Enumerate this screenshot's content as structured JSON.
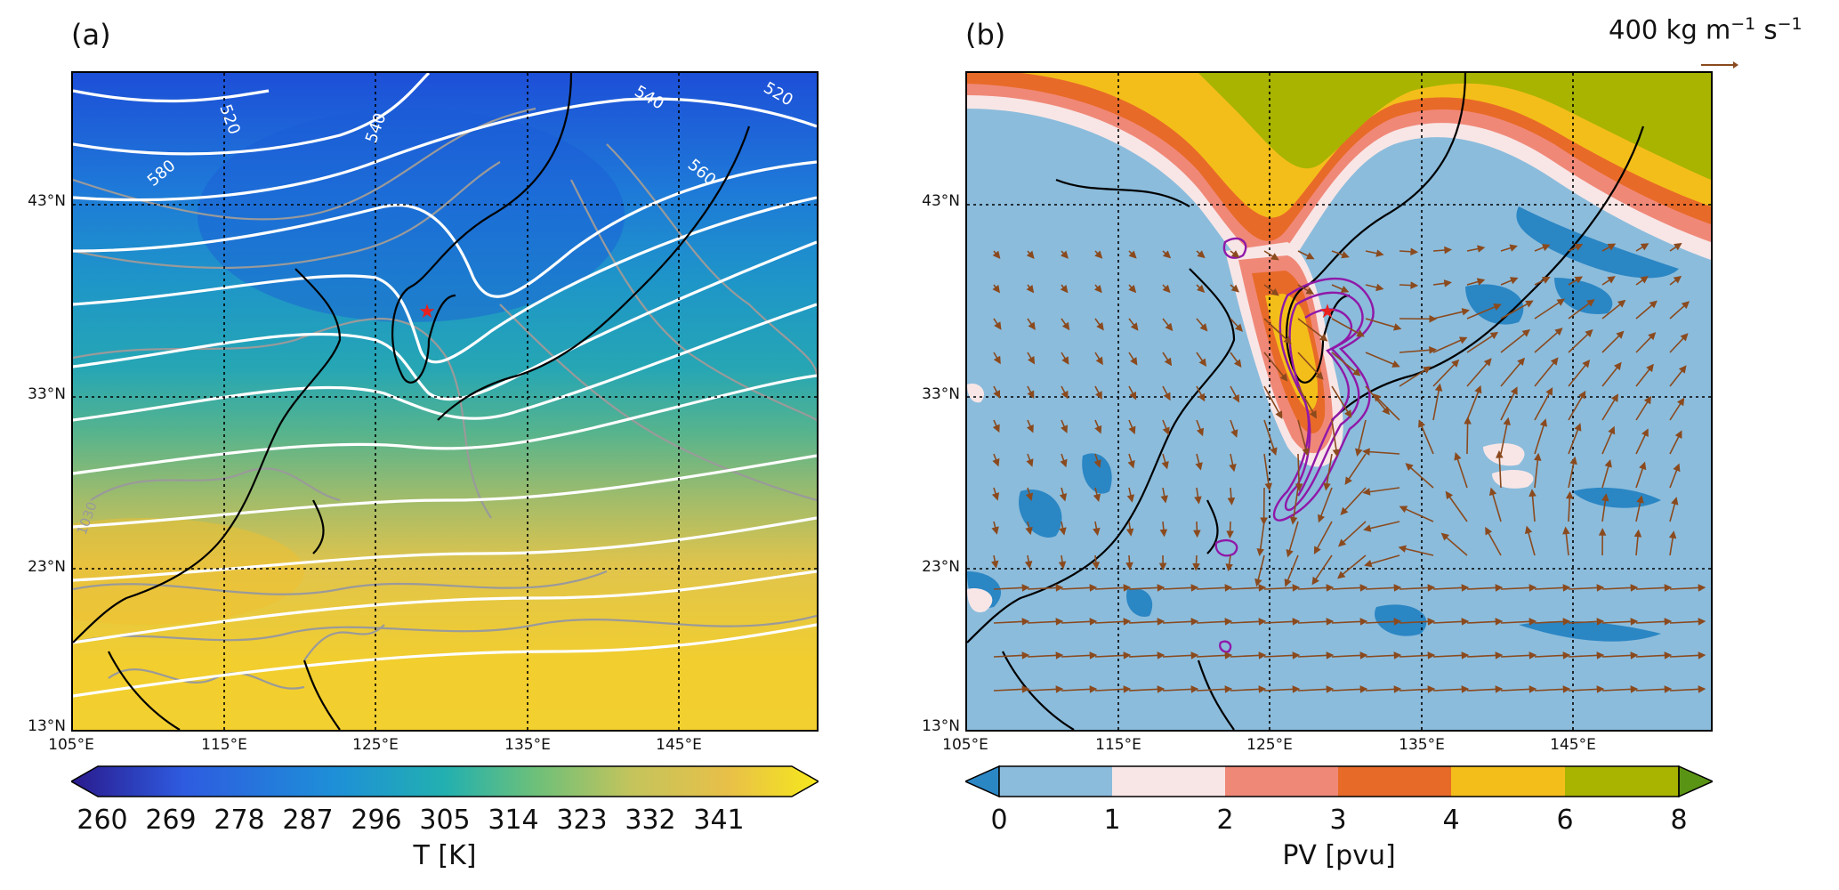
{
  "panel_a": {
    "label": "(a)",
    "lat_ticks": [
      "43°N",
      "33°N",
      "23°N",
      "13°N"
    ],
    "lon_ticks": [
      "105°E",
      "115°E",
      "125°E",
      "135°E",
      "145°E"
    ],
    "contour_labels": [
      "520",
      "580",
      "540",
      "540",
      "560",
      "520",
      "1030"
    ],
    "colorbar": {
      "ticks": [
        "260",
        "269",
        "278",
        "287",
        "296",
        "305",
        "314",
        "323",
        "332",
        "341"
      ],
      "label": "T [K]",
      "colormap": [
        "#2a1a8c",
        "#2e5be0",
        "#1e8fd8",
        "#22b0b0",
        "#6cc07a",
        "#c4c45c",
        "#e8c048",
        "#f6e81c"
      ]
    },
    "colors": {
      "geopotential_contour": "#ffffff",
      "slp_contour": "#9a9a9a",
      "marker": "#e8201e"
    }
  },
  "panel_b": {
    "label": "(b)",
    "lat_ticks": [
      "43°N",
      "33°N",
      "23°N",
      "13°N"
    ],
    "lon_ticks": [
      "105°E",
      "115°E",
      "125°E",
      "135°E",
      "145°E"
    ],
    "flux_reference": {
      "value": "400",
      "unit_base": "kg m",
      "unit_exp1": "−1",
      "unit_s": " s",
      "unit_exp2": "−1"
    },
    "colorbar": {
      "ticks": [
        "0",
        "1",
        "2",
        "3",
        "4",
        "6",
        "8"
      ],
      "label": "PV [pvu]",
      "bins": [
        {
          "range": "0-1",
          "color": "#8bbcdc"
        },
        {
          "range": "1-2",
          "color": "#f8e6e6"
        },
        {
          "range": "2-3",
          "color": "#f08878"
        },
        {
          "range": "3-4",
          "color": "#e86a28"
        },
        {
          "range": "4-6",
          "color": "#f4be1a"
        },
        {
          "range": "6-8",
          "color": "#a8b400"
        }
      ],
      "under_color": "#2b86c4",
      "over_color": "#5a9414"
    },
    "colors": {
      "vectors": "#8a4a1e",
      "precip_contour": "#9018a8",
      "marker": "#e8201e"
    }
  }
}
